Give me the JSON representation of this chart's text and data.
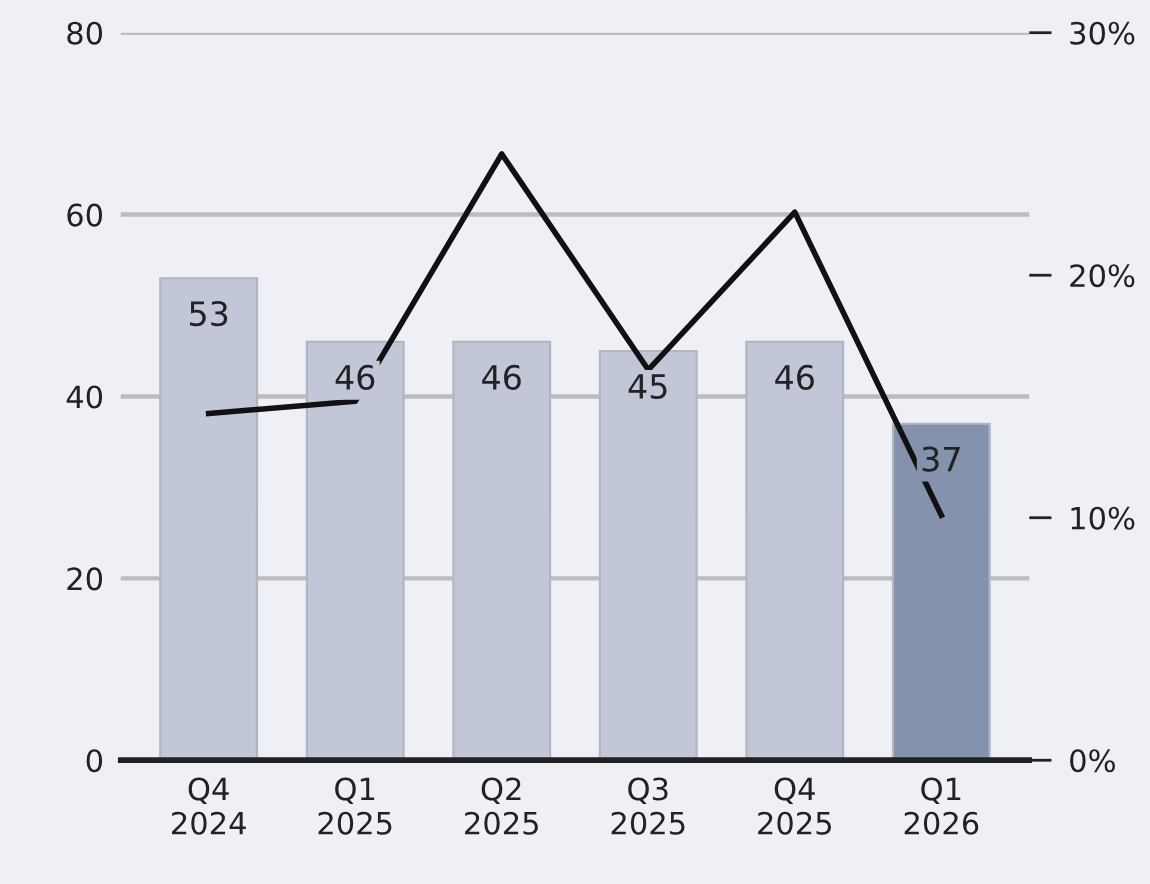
{
  "chart_data": {
    "type": "bar",
    "categories": [
      "Q4\n2024",
      "Q1\n2025",
      "Q2\n2025",
      "Q3\n2025",
      "Q4\n2025",
      "Q1\n2026"
    ],
    "series": [
      {
        "values": [
          53,
          46,
          46,
          45,
          46,
          37
        ],
        "value_labels": [
          "53",
          "46",
          "46",
          "45",
          "46",
          "37"
        ],
        "colors": [
          "#c1c7d6",
          "#c1c7d6",
          "#c1c7d6",
          "#c1c7d6",
          "#c1c7d6",
          "#8592ad"
        ]
      },
      {
        "type": "line",
        "axis": "y2",
        "color": "#111111",
        "values": [
          14.3,
          14.8,
          25.0,
          16.1,
          22.6,
          10.1
        ]
      }
    ],
    "ylim": [
      0,
      80
    ],
    "yticks": [
      0,
      20,
      40,
      60,
      80
    ],
    "y2lim": [
      0,
      30
    ],
    "y2ticks": [
      {
        "value": 0,
        "label": "0%"
      },
      {
        "value": 10,
        "label": "10%"
      },
      {
        "value": 20,
        "label": "20%"
      },
      {
        "value": 30,
        "label": "30%"
      }
    ],
    "grid": "y",
    "marker": "none",
    "line_style": "solid"
  }
}
